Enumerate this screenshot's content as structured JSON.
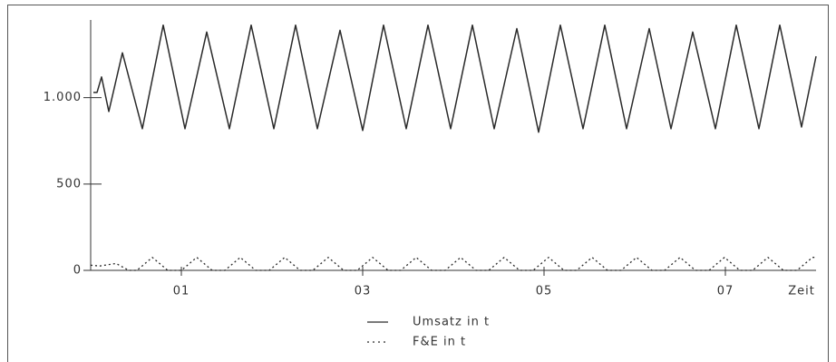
{
  "chart_data": {
    "type": "line",
    "xlabel": "Zeit",
    "xlim": [
      0,
      8
    ],
    "xticks": [
      {
        "value": 1,
        "label": "01"
      },
      {
        "value": 3,
        "label": "03"
      },
      {
        "value": 5,
        "label": "05"
      },
      {
        "value": 7,
        "label": "07"
      }
    ],
    "ylim": [
      0,
      1450
    ],
    "yticks": [
      0,
      500,
      {
        "value": 1000,
        "label": "1.000"
      }
    ],
    "series": [
      {
        "name": "Umsatz in t",
        "color": "#2a2a2a",
        "style": "solid",
        "x": [
          0.03,
          0.07,
          0.12,
          0.2,
          0.35,
          0.57,
          0.8,
          1.04,
          1.28,
          1.53,
          1.77,
          2.02,
          2.26,
          2.5,
          2.75,
          3.0,
          3.23,
          3.48,
          3.72,
          3.97,
          4.21,
          4.45,
          4.7,
          4.94,
          5.18,
          5.43,
          5.67,
          5.91,
          6.16,
          6.4,
          6.64,
          6.89,
          7.12,
          7.37,
          7.6,
          7.84,
          8.0
        ],
        "values": [
          1030,
          1030,
          1120,
          920,
          1260,
          820,
          1420,
          820,
          1380,
          820,
          1420,
          820,
          1420,
          820,
          1390,
          810,
          1420,
          820,
          1420,
          820,
          1420,
          820,
          1400,
          800,
          1420,
          820,
          1420,
          820,
          1400,
          820,
          1380,
          820,
          1420,
          820,
          1420,
          830,
          1240
        ]
      },
      {
        "name": "F&E in t",
        "color": "#2a2a2a",
        "style": "dotted",
        "x": [
          0,
          0.1,
          0.28,
          0.42,
          0.51,
          0.68,
          0.85,
          1.0,
          1.17,
          1.34,
          1.48,
          1.65,
          1.82,
          1.97,
          2.14,
          2.31,
          2.45,
          2.62,
          2.79,
          2.94,
          3.11,
          3.28,
          3.42,
          3.59,
          3.76,
          3.91,
          4.08,
          4.25,
          4.39,
          4.56,
          4.73,
          4.88,
          5.05,
          5.22,
          5.36,
          5.53,
          5.7,
          5.85,
          6.02,
          6.19,
          6.33,
          6.5,
          6.67,
          6.82,
          6.99,
          7.16,
          7.3,
          7.47,
          7.64,
          7.79,
          7.96,
          8.0
        ],
        "values": [
          30,
          25,
          40,
          0,
          0,
          75,
          0,
          0,
          75,
          0,
          0,
          75,
          0,
          0,
          75,
          0,
          0,
          75,
          0,
          0,
          75,
          0,
          0,
          75,
          0,
          0,
          75,
          0,
          0,
          75,
          0,
          0,
          75,
          0,
          0,
          75,
          0,
          0,
          75,
          0,
          0,
          75,
          0,
          0,
          75,
          0,
          0,
          75,
          0,
          0,
          75,
          75
        ]
      }
    ]
  }
}
